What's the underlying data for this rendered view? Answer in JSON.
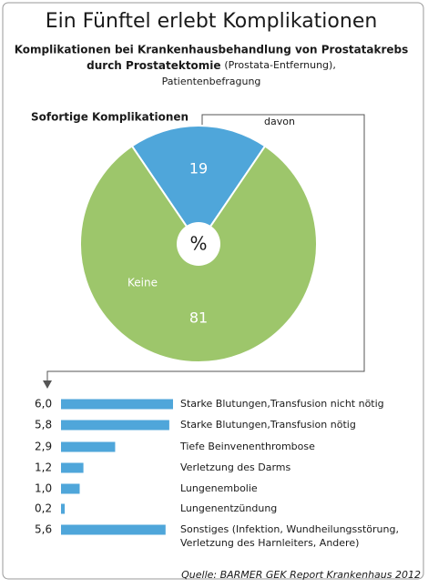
{
  "header": {
    "title": "Ein Fünftel erlebt Komplikationen",
    "subtitle": [
      "Komplikationen bei Krankenhausbehandlung von Prostatakrebs",
      "durch Prostatektomie",
      "(Prostata-Entfernung),",
      "Patientenbefragung"
    ]
  },
  "chart_data": [
    {
      "type": "pie",
      "title": "Sofortige Komplikationen",
      "categories": [
        null,
        "Keine"
      ],
      "values": [
        19,
        81
      ],
      "colors": [
        "#4fa6da",
        "#9dc66b"
      ],
      "center_label": "%",
      "annotation": "davon"
    },
    {
      "type": "bar",
      "orientation": "horizontal",
      "categories": [
        "Starke Blutungen,Transfusion nicht nötig",
        "Starke Blutungen,Transfusion nötig",
        "Tiefe Beinvenenthrombose",
        "Verletzung des Darms",
        "Lungenembolie",
        "Lungenentzündung",
        "Sonstiges (Infektion, Wundheilungsstörung,\nVerletzung des Harnleiters, Andere)"
      ],
      "values": [
        6.0,
        5.8,
        2.9,
        1.2,
        1.0,
        0.2,
        5.6
      ],
      "value_labels": [
        "6,0",
        "5,8",
        "2,9",
        "1,2",
        "1,0",
        "0,2",
        "5,6"
      ],
      "color": "#4fa6da"
    }
  ],
  "source": "Quelle: BARMER GEK Report Krankenhaus 2012"
}
